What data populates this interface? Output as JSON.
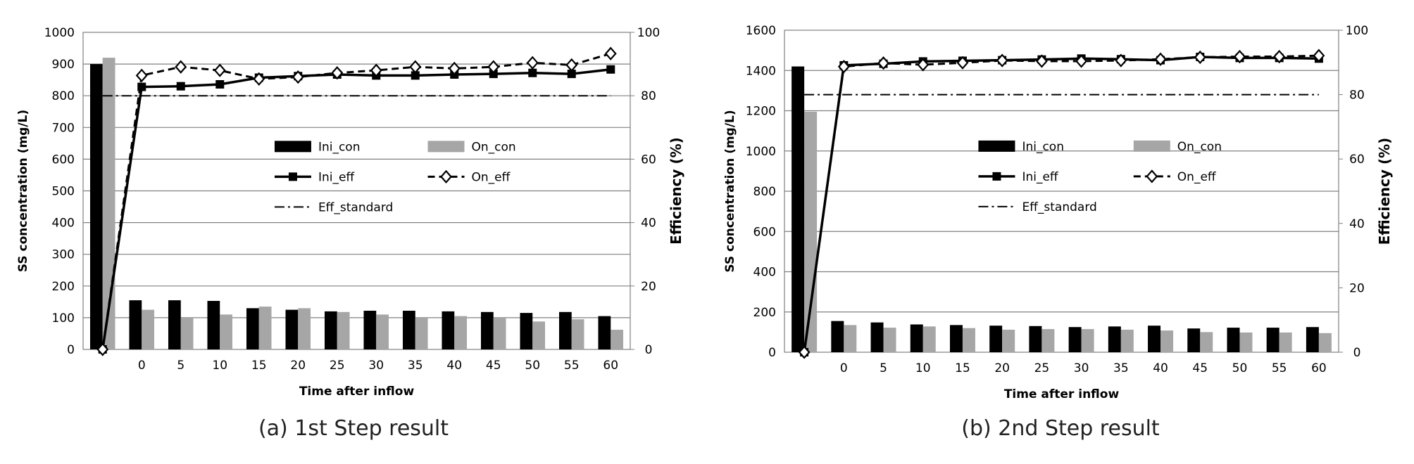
{
  "captions": [
    "(a) 1st Step result",
    "(b) 2nd Step result"
  ],
  "chart_data": [
    {
      "type": "bar+line",
      "xlabel": "Time after inflow",
      "ylabel": "SS concentration (mg/L)",
      "y2label": "Efficiency (%)",
      "categories": [
        "",
        "0",
        "5",
        "10",
        "15",
        "20",
        "25",
        "30",
        "35",
        "40",
        "45",
        "50",
        "55",
        "60"
      ],
      "ylim": [
        0,
        1000
      ],
      "yticks": [
        0,
        100,
        200,
        300,
        400,
        500,
        600,
        700,
        800,
        900,
        1000
      ],
      "y2lim": [
        0,
        100
      ],
      "y2ticks": [
        0,
        20,
        40,
        60,
        80,
        100
      ],
      "grid": true,
      "legend_position": "center-right",
      "bar_series": [
        {
          "name": "Ini_con",
          "color": "#000000",
          "values": [
            900,
            155,
            155,
            153,
            130,
            125,
            120,
            122,
            122,
            120,
            118,
            115,
            118,
            105
          ]
        },
        {
          "name": "On_con",
          "color": "#a6a6a6",
          "values": [
            920,
            125,
            100,
            110,
            135,
            130,
            118,
            110,
            100,
            105,
            100,
            88,
            95,
            62
          ]
        }
      ],
      "line_series": [
        {
          "name": "Ini_eff",
          "style": "solid-square",
          "values": [
            0,
            82.8,
            83.0,
            83.6,
            85.7,
            86.2,
            86.7,
            86.4,
            86.4,
            86.7,
            86.9,
            87.2,
            86.9,
            88.3
          ]
        },
        {
          "name": "On_eff",
          "style": "dashed-diamond",
          "values": [
            0,
            86.4,
            89.1,
            88.0,
            85.3,
            85.9,
            87.2,
            88.0,
            89.1,
            88.6,
            89.1,
            90.4,
            89.7,
            93.3
          ]
        }
      ],
      "reference_line": {
        "name": "Eff_standard",
        "style": "dash-dot",
        "value": 80
      }
    },
    {
      "type": "bar+line",
      "xlabel": "Time after inflow",
      "ylabel": "SS concentration (mg/L)",
      "y2label": "Efficiency (%)",
      "categories": [
        "",
        "0",
        "5",
        "10",
        "15",
        "20",
        "25",
        "30",
        "35",
        "40",
        "45",
        "50",
        "55",
        "60"
      ],
      "ylim": [
        0,
        1600
      ],
      "yticks": [
        0,
        200,
        400,
        600,
        800,
        1000,
        1200,
        1400,
        1600
      ],
      "y2lim": [
        0,
        100
      ],
      "y2ticks": [
        0,
        20,
        40,
        60,
        80,
        100
      ],
      "grid": true,
      "legend_position": "center-right",
      "bar_series": [
        {
          "name": "Ini_con",
          "color": "#000000",
          "values": [
            1420,
            155,
            148,
            138,
            135,
            132,
            130,
            125,
            128,
            132,
            118,
            122,
            122,
            125
          ]
        },
        {
          "name": "On_con",
          "color": "#a6a6a6",
          "values": [
            1195,
            135,
            122,
            128,
            120,
            112,
            115,
            115,
            112,
            108,
            100,
            98,
            98,
            95
          ]
        }
      ],
      "line_series": [
        {
          "name": "Ini_eff",
          "style": "solid-square",
          "values": [
            0,
            89.1,
            89.6,
            90.3,
            90.5,
            90.7,
            90.9,
            91.2,
            91.0,
            90.7,
            91.7,
            91.4,
            91.4,
            91.2
          ]
        },
        {
          "name": "On_eff",
          "style": "dashed-diamond",
          "values": [
            0,
            88.7,
            89.8,
            89.3,
            89.9,
            90.6,
            90.4,
            90.4,
            90.6,
            91.0,
            91.6,
            91.8,
            91.8,
            92.1
          ]
        }
      ],
      "reference_line": {
        "name": "Eff_standard",
        "style": "dash-dot",
        "value": 80
      }
    }
  ]
}
